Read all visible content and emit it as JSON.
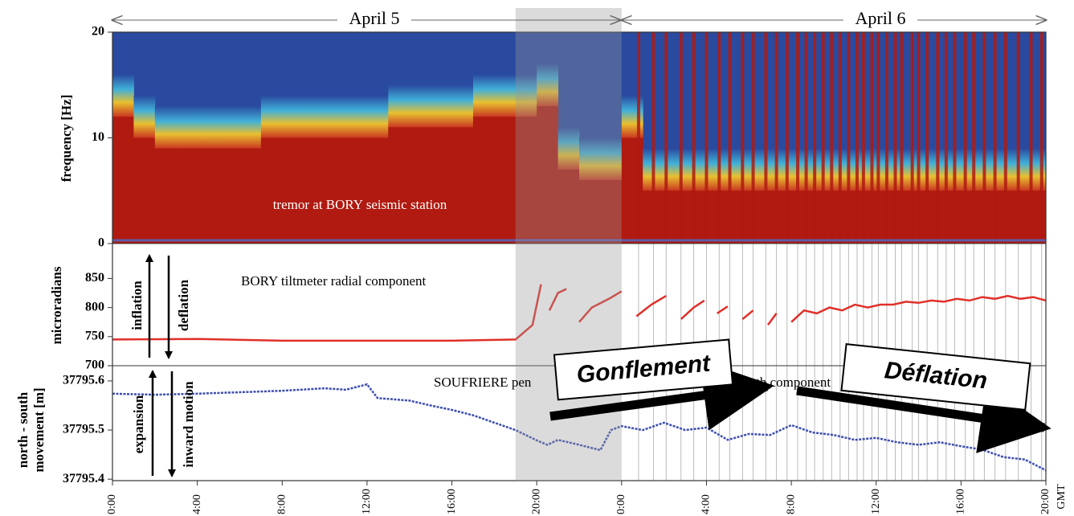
{
  "chart_data": [
    {
      "type": "area",
      "y_label": "frequency [Hz]",
      "annotation": "tremor at BORY seismic station",
      "date_labels": [
        "April 5",
        "April 6"
      ],
      "highlight": [
        19,
        24
      ],
      "color": "#b01a10",
      "x": [
        0,
        1,
        2,
        3,
        4,
        5,
        6,
        7,
        8,
        9,
        10,
        11,
        12,
        13,
        14,
        15,
        16,
        17,
        18,
        19,
        20,
        21,
        22,
        23,
        24,
        25,
        26,
        27,
        28,
        29,
        30,
        31,
        32,
        33,
        34,
        35,
        36,
        37,
        38,
        39,
        40,
        41,
        42,
        43,
        44
      ],
      "values": [
        12,
        10,
        9,
        9,
        9,
        9,
        9,
        10,
        10,
        10,
        10,
        10,
        10,
        11,
        11,
        11,
        11,
        12,
        12,
        12,
        13,
        7,
        6,
        6,
        10,
        5,
        5,
        5,
        5,
        5,
        5,
        5,
        5,
        5,
        5,
        5,
        5,
        5,
        5,
        5,
        5,
        5,
        5,
        5,
        5
      ],
      "events": [
        24.8,
        25.5,
        26.1,
        26.8,
        27.4,
        28.0,
        28.6,
        29.1,
        29.7,
        30.2,
        30.8,
        31.3,
        31.8,
        32.3,
        32.7,
        33.1,
        33.5,
        33.9,
        34.3,
        34.7,
        35.1,
        35.4,
        35.8,
        36.1,
        36.5,
        36.9,
        37.2,
        37.7,
        38.0,
        38.4,
        38.9,
        39.3,
        39.7,
        40.2,
        40.6,
        41.1,
        41.6,
        42.1,
        42.7,
        43.3,
        43.8
      ],
      "ylim": [
        0,
        20
      ],
      "yticks": [
        0,
        10,
        20
      ]
    },
    {
      "type": "line",
      "y_label": "microradians",
      "annotation": "BORY tiltmeter radial component",
      "arrow_labels": [
        "inflation",
        "deflation"
      ],
      "color": "#e0302a",
      "x": [
        0,
        4,
        8,
        12,
        16,
        19,
        19.8,
        20.2,
        20.3,
        20.6,
        21,
        21.4,
        21.5,
        22,
        22.6,
        23.4,
        24,
        24.1,
        24.7,
        25.4,
        26.1,
        26.2,
        26.8,
        27.4,
        27.9,
        28,
        28.5,
        29,
        29.1,
        29.7,
        30.2,
        30.3,
        30.9,
        31.3,
        31.4,
        32,
        32.6,
        33.2,
        33.8,
        34.4,
        35,
        35.6,
        36.2,
        36.8,
        37.4,
        38,
        38.6,
        39.2,
        39.8,
        40.4,
        41,
        41.6,
        42.2,
        42.8,
        43.4,
        44
      ],
      "values": [
        745,
        746,
        743,
        743,
        743,
        745,
        770,
        840,
        null,
        795,
        825,
        832,
        null,
        775,
        800,
        815,
        828,
        null,
        785,
        805,
        820,
        null,
        780,
        800,
        812,
        null,
        790,
        802,
        null,
        780,
        795,
        null,
        770,
        790,
        null,
        775,
        795,
        790,
        800,
        795,
        805,
        800,
        805,
        805,
        810,
        808,
        812,
        810,
        815,
        812,
        818,
        815,
        820,
        815,
        818,
        812
      ],
      "ylim": [
        700,
        910
      ],
      "yticks": [
        700,
        750,
        800,
        850
      ]
    },
    {
      "type": "line",
      "y_label": [
        "north - south",
        "movement [m]"
      ],
      "annotation": [
        "SOUFRIERE pen",
        "ar south component"
      ],
      "arrow_labels": [
        "expansion",
        "inward motion"
      ],
      "overlay": [
        "Gonflement",
        "Déflation"
      ],
      "x_unit": "GMT",
      "color": "#3d4fb0",
      "x": [
        0,
        2,
        4,
        6,
        8,
        10,
        11,
        12,
        12.5,
        14,
        15,
        16,
        17,
        18,
        19,
        20,
        20.5,
        21,
        22,
        23,
        23.5,
        24,
        25,
        26,
        27,
        28,
        29,
        30,
        31,
        32,
        33,
        34,
        35,
        36,
        37,
        38,
        39,
        40,
        41,
        42,
        43,
        44
      ],
      "values": [
        37795.574,
        37795.572,
        37795.574,
        37795.577,
        37795.58,
        37795.585,
        37795.582,
        37795.593,
        37795.565,
        37795.56,
        37795.55,
        37795.541,
        37795.53,
        37795.515,
        37795.5,
        37795.479,
        37795.47,
        37795.48,
        37795.47,
        37795.459,
        37795.5,
        37795.508,
        37795.5,
        37795.515,
        37795.5,
        37795.505,
        37795.48,
        37795.492,
        37795.49,
        37795.51,
        37795.495,
        37795.49,
        37795.48,
        37795.484,
        37795.475,
        37795.47,
        37795.475,
        37795.467,
        37795.46,
        37795.445,
        37795.44,
        37795.418
      ],
      "ylim": [
        37795.397,
        37795.631
      ],
      "yticks": [
        37795.4,
        37795.5,
        37795.6
      ],
      "xlim": [
        0,
        44
      ],
      "xticks": [
        {
          "value": 0,
          "label": "0:00"
        },
        {
          "value": 4,
          "label": "4:00"
        },
        {
          "value": 8,
          "label": "8:00"
        },
        {
          "value": 12,
          "label": "12:00"
        },
        {
          "value": 16,
          "label": "16:00"
        },
        {
          "value": 20,
          "label": "20:00"
        },
        {
          "value": 24,
          "label": "0:00"
        },
        {
          "value": 28,
          "label": "4:00"
        },
        {
          "value": 32,
          "label": "8:00"
        },
        {
          "value": 36,
          "label": "12:00"
        },
        {
          "value": 40,
          "label": "16:00"
        },
        {
          "value": 44,
          "label": "20:00"
        }
      ]
    }
  ]
}
